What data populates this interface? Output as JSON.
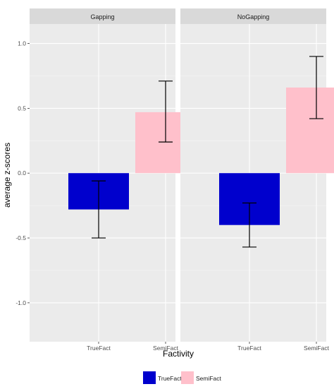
{
  "chart_data": {
    "type": "bar",
    "title": "",
    "xlabel": "Factivity",
    "ylabel": "average z-scores",
    "ylim": [
      -1.3,
      1.15
    ],
    "yticks": [
      -1.0,
      -0.5,
      0.0,
      0.5,
      1.0
    ],
    "ytick_labels": [
      "-1.0",
      "-0.5",
      "0.0",
      "0.5",
      "1.0"
    ],
    "categories": [
      "TrueFact",
      "SemiFact"
    ],
    "grid": true,
    "legend_position": "bottom",
    "legend": [
      {
        "label": "TrueFact",
        "color": "#0000CD"
      },
      {
        "label": "SemiFact",
        "color": "#FFC0CB"
      }
    ],
    "panels": [
      {
        "strip": "Gapping",
        "bars": [
          {
            "category": "TrueFact",
            "value": -0.28,
            "err_low": -0.5,
            "err_high": -0.06
          },
          {
            "category": "SemiFact",
            "value": 0.47,
            "err_low": 0.24,
            "err_high": 0.71
          }
        ]
      },
      {
        "strip": "NoGapping",
        "bars": [
          {
            "category": "TrueFact",
            "value": -0.4,
            "err_low": -0.57,
            "err_high": -0.23
          },
          {
            "category": "SemiFact",
            "value": 0.66,
            "err_low": 0.42,
            "err_high": 0.9
          }
        ]
      }
    ]
  },
  "colors": {
    "panel_bg": "#EBEBEB",
    "strip_bg": "#D9D9D9",
    "grid_major": "#FFFFFF",
    "text": "#4D4D4D",
    "truefact": "#0000CD",
    "semifact": "#FFC0CB"
  }
}
